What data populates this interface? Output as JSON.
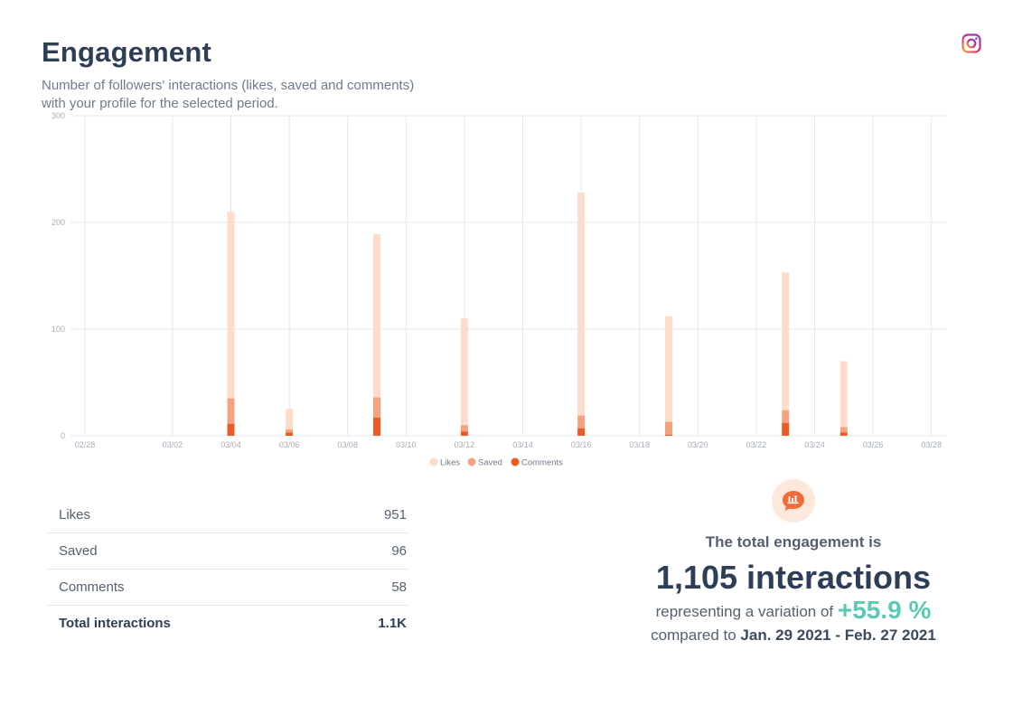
{
  "header": {
    "title": "Engagement",
    "subtitle_line1": "Number of followers' interactions (likes, saved and comments)",
    "subtitle_line2": "with your profile for the selected period.",
    "platform_icon": "instagram-icon"
  },
  "colors": {
    "likes": "#fddccb",
    "saved": "#f7a27f",
    "comments": "#ee5a24",
    "grid": "#e4e7eb",
    "axis_text": "#a6adb6",
    "accent_positive": "#5cc9b4"
  },
  "chart_data": {
    "type": "bar",
    "stacked": true,
    "ylim": [
      0,
      300
    ],
    "yticks": [
      0,
      100,
      200,
      300
    ],
    "x_ticks": [
      "02/28",
      "03/02",
      "03/04",
      "03/06",
      "03/08",
      "03/10",
      "03/12",
      "03/14",
      "03/16",
      "03/18",
      "03/20",
      "03/22",
      "03/24",
      "03/26",
      "03/28"
    ],
    "x_start_date": "2021-02-28",
    "legend": {
      "position": "bottom-center"
    },
    "grid": true,
    "series": [
      {
        "name": "Likes",
        "color": "#fddccb"
      },
      {
        "name": "Saved",
        "color": "#f7a27f"
      },
      {
        "name": "Comments",
        "color": "#ee5a24"
      }
    ],
    "points": [
      {
        "date": "03/04",
        "total": 210,
        "saved_top": 35,
        "comments": 11
      },
      {
        "date": "03/06",
        "total": 25,
        "saved_top": 6,
        "comments": 3
      },
      {
        "date": "03/09",
        "total": 189,
        "saved_top": 36,
        "comments": 17
      },
      {
        "date": "03/12",
        "total": 110,
        "saved_top": 10,
        "comments": 4
      },
      {
        "date": "03/16",
        "total": 228,
        "saved_top": 19,
        "comments": 7
      },
      {
        "date": "03/19",
        "total": 112,
        "saved_top": 13,
        "comments": 1
      },
      {
        "date": "03/23",
        "total": 153,
        "saved_top": 24,
        "comments": 12
      },
      {
        "date": "03/25",
        "total": 70,
        "saved_top": 8,
        "comments": 3
      }
    ]
  },
  "stats": {
    "rows": [
      {
        "label": "Likes",
        "value": "951"
      },
      {
        "label": "Saved",
        "value": "96"
      },
      {
        "label": "Comments",
        "value": "58"
      },
      {
        "label": "Total interactions",
        "value": "1.1K"
      }
    ]
  },
  "summary": {
    "icon": "chat-bubble-chart-icon",
    "heading": "The total engagement is",
    "total": "1,105 interactions",
    "variation_prefix": "representing a variation of",
    "variation": "+55.9 %",
    "compared_prefix": "compared to",
    "compared_period": "Jan. 29 2021 - Feb. 27 2021"
  }
}
